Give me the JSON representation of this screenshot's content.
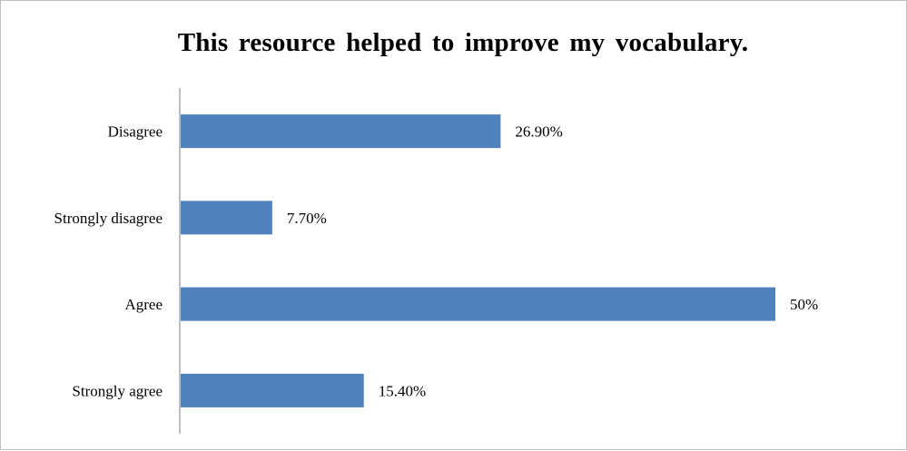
{
  "chart_data": {
    "type": "bar",
    "orientation": "horizontal",
    "title": "This resource helped to improve my vocabulary.",
    "categories": [
      "Disagree",
      "Strongly disagree",
      "Agree",
      "Strongly agree"
    ],
    "values": [
      26.9,
      7.7,
      50,
      15.4
    ],
    "data_labels": [
      "26.90%",
      "7.70%",
      "50%",
      "15.40%"
    ],
    "xlim": [
      0,
      50
    ],
    "xlabel": "",
    "ylabel": "",
    "grid": false,
    "legend": "none",
    "bar_color": "#4f81bd",
    "axis_color": "#7f7f7f"
  }
}
